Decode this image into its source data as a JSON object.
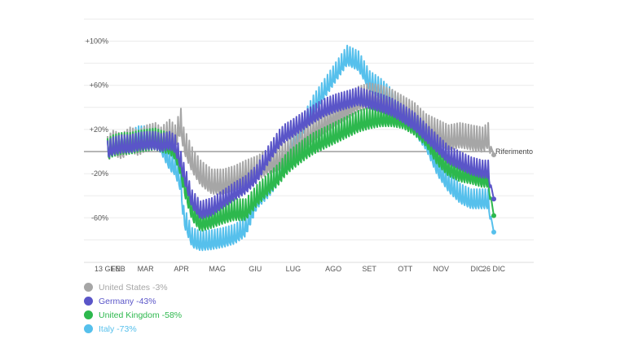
{
  "chart_data": {
    "type": "line",
    "reference_label": "Riferimento",
    "x_ticks": [
      "13 GEN",
      "FEB",
      "MAR",
      "APR",
      "MAG",
      "GIU",
      "LUG",
      "AGO",
      "SET",
      "OTT",
      "NOV",
      "DIC",
      "26 DIC"
    ],
    "y_ticks": [
      "+100%",
      "+60%",
      "+20%",
      "-20%",
      "-60%"
    ],
    "ylim": [
      -100,
      120
    ],
    "grid": true,
    "legend_position": "bottom-left",
    "series": [
      {
        "name": "United States",
        "legend_label": "United States -3%",
        "color": "#a6a6a6",
        "points": [
          [
            0,
            0
          ],
          [
            2,
            5
          ],
          [
            5,
            2
          ],
          [
            8,
            8
          ],
          [
            11,
            5
          ],
          [
            14,
            10
          ],
          [
            17,
            12
          ],
          [
            19,
            8
          ],
          [
            22,
            15
          ],
          [
            24,
            10
          ],
          [
            26,
            25
          ],
          [
            27,
            8
          ],
          [
            30,
            -10
          ],
          [
            33,
            -22
          ],
          [
            37,
            -30
          ],
          [
            41,
            -30
          ],
          [
            45,
            -27
          ],
          [
            49,
            -22
          ],
          [
            53,
            -18
          ],
          [
            57,
            -12
          ],
          [
            61,
            -8
          ],
          [
            63,
            -5
          ],
          [
            65,
            0
          ],
          [
            69,
            8
          ],
          [
            73,
            18
          ],
          [
            77,
            25
          ],
          [
            81,
            32
          ],
          [
            85,
            38
          ],
          [
            89,
            45
          ],
          [
            93,
            48
          ],
          [
            97,
            46
          ],
          [
            101,
            42
          ],
          [
            105,
            36
          ],
          [
            109,
            30
          ],
          [
            113,
            20
          ],
          [
            117,
            15
          ],
          [
            121,
            10
          ],
          [
            125,
            12
          ],
          [
            129,
            10
          ],
          [
            133,
            8
          ],
          [
            135,
            12
          ],
          [
            137,
            -3
          ]
        ],
        "amp": 14
      },
      {
        "name": "Germany",
        "legend_label": "Germany -43%",
        "color": "#5a55c8",
        "points": [
          [
            0,
            0
          ],
          [
            2,
            3
          ],
          [
            5,
            5
          ],
          [
            8,
            5
          ],
          [
            11,
            7
          ],
          [
            14,
            8
          ],
          [
            17,
            8
          ],
          [
            19,
            6
          ],
          [
            22,
            8
          ],
          [
            24,
            5
          ],
          [
            26,
            -10
          ],
          [
            27,
            -20
          ],
          [
            30,
            -45
          ],
          [
            33,
            -55
          ],
          [
            37,
            -52
          ],
          [
            41,
            -45
          ],
          [
            45,
            -38
          ],
          [
            49,
            -32
          ],
          [
            53,
            -22
          ],
          [
            57,
            -5
          ],
          [
            61,
            10
          ],
          [
            63,
            15
          ],
          [
            65,
            18
          ],
          [
            69,
            25
          ],
          [
            73,
            32
          ],
          [
            77,
            38
          ],
          [
            81,
            42
          ],
          [
            85,
            45
          ],
          [
            89,
            48
          ],
          [
            93,
            45
          ],
          [
            97,
            42
          ],
          [
            101,
            38
          ],
          [
            105,
            32
          ],
          [
            109,
            25
          ],
          [
            113,
            15
          ],
          [
            117,
            5
          ],
          [
            121,
            -5
          ],
          [
            125,
            -10
          ],
          [
            129,
            -15
          ],
          [
            133,
            -18
          ],
          [
            135,
            -18
          ],
          [
            137,
            -43
          ]
        ],
        "amp": 10
      },
      {
        "name": "United Kingdom",
        "legend_label": "United Kingdom -58%",
        "color": "#2db84d",
        "points": [
          [
            0,
            0
          ],
          [
            2,
            3
          ],
          [
            5,
            5
          ],
          [
            8,
            5
          ],
          [
            11,
            7
          ],
          [
            14,
            8
          ],
          [
            17,
            9
          ],
          [
            19,
            7
          ],
          [
            22,
            5
          ],
          [
            24,
            0
          ],
          [
            26,
            -15
          ],
          [
            27,
            -30
          ],
          [
            30,
            -55
          ],
          [
            33,
            -65
          ],
          [
            37,
            -62
          ],
          [
            41,
            -58
          ],
          [
            45,
            -55
          ],
          [
            49,
            -55
          ],
          [
            53,
            -42
          ],
          [
            57,
            -32
          ],
          [
            61,
            -22
          ],
          [
            63,
            -15
          ],
          [
            65,
            -10
          ],
          [
            69,
            -2
          ],
          [
            73,
            5
          ],
          [
            77,
            10
          ],
          [
            81,
            15
          ],
          [
            85,
            20
          ],
          [
            89,
            25
          ],
          [
            93,
            28
          ],
          [
            97,
            30
          ],
          [
            101,
            30
          ],
          [
            105,
            28
          ],
          [
            109,
            22
          ],
          [
            113,
            12
          ],
          [
            117,
            -5
          ],
          [
            121,
            -15
          ],
          [
            125,
            -20
          ],
          [
            129,
            -22
          ],
          [
            133,
            -25
          ],
          [
            135,
            -25
          ],
          [
            137,
            -58
          ]
        ],
        "amp": 12
      },
      {
        "name": "Italy",
        "legend_label": "Italy -73%",
        "color": "#56c0ec",
        "points": [
          [
            0,
            0
          ],
          [
            2,
            5
          ],
          [
            5,
            5
          ],
          [
            8,
            8
          ],
          [
            11,
            12
          ],
          [
            14,
            12
          ],
          [
            17,
            12
          ],
          [
            19,
            5
          ],
          [
            22,
            -10
          ],
          [
            24,
            -15
          ],
          [
            26,
            -30
          ],
          [
            27,
            -60
          ],
          [
            30,
            -80
          ],
          [
            33,
            -83
          ],
          [
            37,
            -82
          ],
          [
            41,
            -80
          ],
          [
            45,
            -77
          ],
          [
            49,
            -70
          ],
          [
            53,
            -45
          ],
          [
            57,
            -35
          ],
          [
            61,
            -22
          ],
          [
            63,
            -10
          ],
          [
            65,
            5
          ],
          [
            69,
            20
          ],
          [
            73,
            40
          ],
          [
            77,
            55
          ],
          [
            81,
            70
          ],
          [
            85,
            85
          ],
          [
            89,
            80
          ],
          [
            93,
            62
          ],
          [
            97,
            55
          ],
          [
            101,
            45
          ],
          [
            105,
            35
          ],
          [
            109,
            22
          ],
          [
            113,
            8
          ],
          [
            117,
            -15
          ],
          [
            121,
            -30
          ],
          [
            125,
            -40
          ],
          [
            129,
            -45
          ],
          [
            133,
            -45
          ],
          [
            135,
            -45
          ],
          [
            137,
            -73
          ]
        ],
        "amp": 11
      }
    ]
  }
}
